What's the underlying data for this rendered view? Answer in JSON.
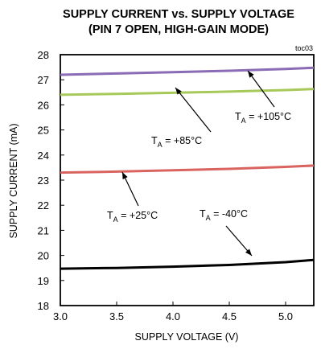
{
  "chart_data": {
    "type": "line",
    "title_line1": "SUPPLY CURRENT vs. SUPPLY VOLTAGE",
    "title_line2": "(PIN 7 OPEN, HIGH-GAIN MODE)",
    "figure_id": "toc03",
    "xlabel": "SUPPLY VOLTAGE (V)",
    "ylabel": "SUPPLY CURRENT (mA)",
    "xlim": [
      3.0,
      5.25
    ],
    "ylim": [
      18,
      28
    ],
    "x_ticks": [
      "3.0",
      "3.5",
      "4.0",
      "4.5",
      "5.0"
    ],
    "y_ticks": [
      "18",
      "19",
      "20",
      "21",
      "22",
      "23",
      "24",
      "25",
      "26",
      "27",
      "28"
    ],
    "grid": false,
    "legend": "none",
    "series": [
      {
        "name": "TA = +105°C",
        "color": "#8a6bb5",
        "x": [
          3.0,
          3.5,
          4.0,
          4.5,
          5.0,
          5.25
        ],
        "y": [
          27.2,
          27.25,
          27.3,
          27.36,
          27.43,
          27.48
        ]
      },
      {
        "name": "TA = +85°C",
        "color": "#a6c95a",
        "x": [
          3.0,
          3.5,
          4.0,
          4.5,
          5.0,
          5.25
        ],
        "y": [
          26.4,
          26.44,
          26.48,
          26.53,
          26.59,
          26.63
        ]
      },
      {
        "name": "TA = +25°C",
        "color": "#d9645f",
        "x": [
          3.0,
          3.5,
          4.0,
          4.5,
          5.0,
          5.25
        ],
        "y": [
          23.3,
          23.34,
          23.39,
          23.45,
          23.53,
          23.58
        ]
      },
      {
        "name": "TA = -40°C",
        "color": "#000000",
        "x": [
          3.0,
          3.5,
          4.0,
          4.5,
          5.0,
          5.25
        ],
        "y": [
          19.47,
          19.5,
          19.55,
          19.62,
          19.73,
          19.82
        ]
      }
    ],
    "annotations": [
      {
        "main": "T",
        "sub": "A",
        "rest": " = +105°C"
      },
      {
        "main": "T",
        "sub": "A",
        "rest": " = +85°C"
      },
      {
        "main": "T",
        "sub": "A",
        "rest": " = +25°C"
      },
      {
        "main": "T",
        "sub": "A",
        "rest": " = -40°C"
      }
    ]
  }
}
